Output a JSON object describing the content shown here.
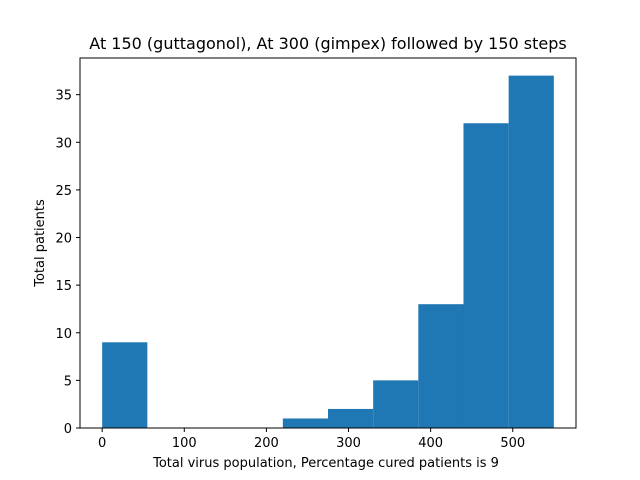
{
  "chart_data": {
    "type": "bar",
    "title": "At 150 (guttagonol), At 300 (gimpex) followed by 150 steps",
    "xlabel": "Total virus population, Percentage cured patients is 9",
    "ylabel": "Total patients",
    "xlim": [
      -27,
      577
    ],
    "ylim": [
      0,
      38.85
    ],
    "xticks": [
      0,
      100,
      200,
      300,
      400,
      500
    ],
    "yticks": [
      0,
      5,
      10,
      15,
      20,
      25,
      30,
      35
    ],
    "bins": [
      {
        "x0": 0,
        "x1": 55,
        "count": 9
      },
      {
        "x0": 55,
        "x1": 110,
        "count": 0
      },
      {
        "x0": 110,
        "x1": 165,
        "count": 0
      },
      {
        "x0": 165,
        "x1": 220,
        "count": 0
      },
      {
        "x0": 220,
        "x1": 275,
        "count": 1
      },
      {
        "x0": 275,
        "x1": 330,
        "count": 2
      },
      {
        "x0": 330,
        "x1": 385,
        "count": 5
      },
      {
        "x0": 385,
        "x1": 440,
        "count": 13
      },
      {
        "x0": 440,
        "x1": 495,
        "count": 32
      },
      {
        "x0": 495,
        "x1": 550,
        "count": 37
      }
    ],
    "bar_color": "#1f77b4",
    "grid": false,
    "legend": "none"
  }
}
